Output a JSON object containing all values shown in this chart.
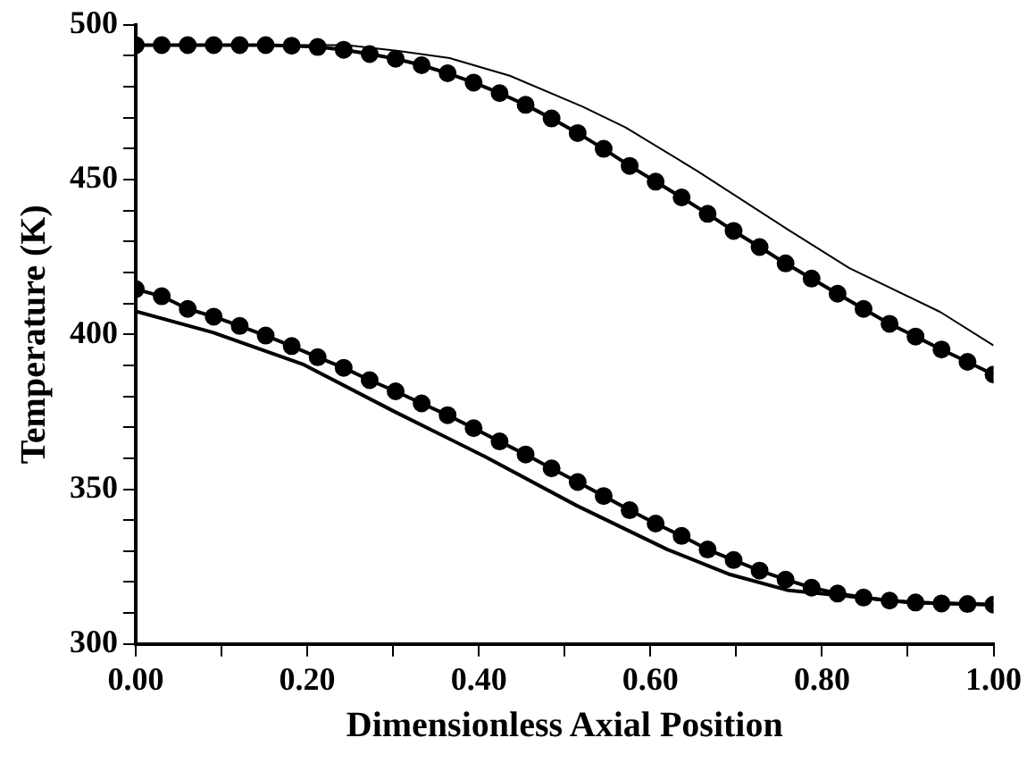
{
  "chart_data": {
    "type": "line",
    "xlabel": "Dimensionless Axial Position",
    "ylabel": "Temperature (K)",
    "xlim": [
      0,
      1
    ],
    "ylim": [
      300,
      500
    ],
    "xticks": [
      {
        "value": 0,
        "label": "0.00"
      },
      {
        "value": 0.1,
        "label": null
      },
      {
        "value": 0.2,
        "label": "0.20"
      },
      {
        "value": 0.3,
        "label": null
      },
      {
        "value": 0.4,
        "label": "0.40"
      },
      {
        "value": 0.5,
        "label": null
      },
      {
        "value": 0.6,
        "label": "0.60"
      },
      {
        "value": 0.7,
        "label": null
      },
      {
        "value": 0.8,
        "label": "0.80"
      },
      {
        "value": 0.9,
        "label": null
      },
      {
        "value": 1,
        "label": "1.00"
      }
    ],
    "yticks": [
      300,
      {
        "value": 310,
        "label": null
      },
      {
        "value": 320,
        "label": null
      },
      {
        "value": 330,
        "label": null
      },
      {
        "value": 340,
        "label": null
      },
      350,
      {
        "value": 360,
        "label": null
      },
      {
        "value": 370,
        "label": null
      },
      {
        "value": 380,
        "label": null
      },
      {
        "value": 390,
        "label": null
      },
      400,
      {
        "value": 410,
        "label": null
      },
      {
        "value": 420,
        "label": null
      },
      {
        "value": 430,
        "label": null
      },
      {
        "value": 440,
        "label": null
      },
      450,
      {
        "value": 460,
        "label": null
      },
      {
        "value": 470,
        "label": null
      },
      {
        "value": 480,
        "label": null
      },
      {
        "value": 490,
        "label": null
      },
      500
    ],
    "grid": false,
    "legend": false,
    "series": [
      {
        "color": "#000000",
        "marker": "circle",
        "x": [
          0,
          0.0303,
          0.0606,
          0.0909,
          0.1212,
          0.1515,
          0.1818,
          0.2121,
          0.2424,
          0.2727,
          0.303,
          0.3333,
          0.3636,
          0.3939,
          0.4242,
          0.4545,
          0.4848,
          0.5152,
          0.5455,
          0.5758,
          0.6061,
          0.6364,
          0.6667,
          0.697,
          0.7273,
          0.7576,
          0.7879,
          0.8182,
          0.8485,
          0.8788,
          0.9091,
          0.9394,
          0.9697,
          1
        ],
        "values": [
          493.4,
          493.4,
          493.4,
          493.4,
          493.4,
          493.4,
          493.2,
          492.8,
          491.9,
          490.5,
          489.0,
          486.9,
          484.3,
          481.3,
          477.9,
          474.1,
          469.7,
          465.0,
          459.9,
          454.4,
          449.3,
          444.2,
          438.9,
          433.4,
          428.2,
          422.9,
          418.0,
          413.1,
          408.2,
          403.4,
          399.3,
          395.1,
          391.1,
          387.0
        ]
      },
      {
        "color": "#000000",
        "marker": "none",
        "x": [
          0,
          0.15,
          0.246,
          0.306,
          0.366,
          0.436,
          0.521,
          0.571,
          0.655,
          0.761,
          0.832,
          0.938,
          1
        ],
        "values": [
          493.4,
          493.4,
          493.4,
          491.5,
          489.2,
          483.5,
          473.5,
          466.8,
          452.7,
          433.7,
          421.4,
          407.2,
          396.4
        ]
      },
      {
        "color": "#000000",
        "marker": "circle",
        "x": [
          0,
          0.0303,
          0.0606,
          0.0909,
          0.1212,
          0.1515,
          0.1818,
          0.2121,
          0.2424,
          0.2727,
          0.303,
          0.3333,
          0.3636,
          0.3939,
          0.4242,
          0.4545,
          0.4848,
          0.5152,
          0.5455,
          0.5758,
          0.6061,
          0.6364,
          0.6667,
          0.697,
          0.7273,
          0.7576,
          0.7879,
          0.8182,
          0.8485,
          0.8788,
          0.9091,
          0.9394,
          0.9697,
          1
        ],
        "values": [
          414.6,
          412.3,
          408.2,
          405.7,
          402.7,
          399.6,
          396.2,
          392.6,
          389.2,
          385.2,
          381.6,
          377.7,
          373.9,
          369.7,
          365.4,
          361.2,
          356.7,
          352.3,
          347.8,
          343.2,
          338.9,
          334.9,
          330.5,
          327.1,
          323.7,
          320.8,
          318.2,
          316.3,
          315.0,
          314.0,
          313.4,
          313.1,
          312.9,
          312.7
        ]
      },
      {
        "color": "#000000",
        "marker": "none",
        "x": [
          0,
          0.09,
          0.196,
          0.302,
          0.408,
          0.514,
          0.62,
          0.691,
          0.761,
          0.832,
          0.903,
          1
        ],
        "values": [
          407.4,
          400.6,
          390.2,
          375.0,
          360.4,
          344.7,
          330.5,
          322.6,
          317.3,
          315.4,
          313.4,
          312.7
        ]
      }
    ]
  }
}
